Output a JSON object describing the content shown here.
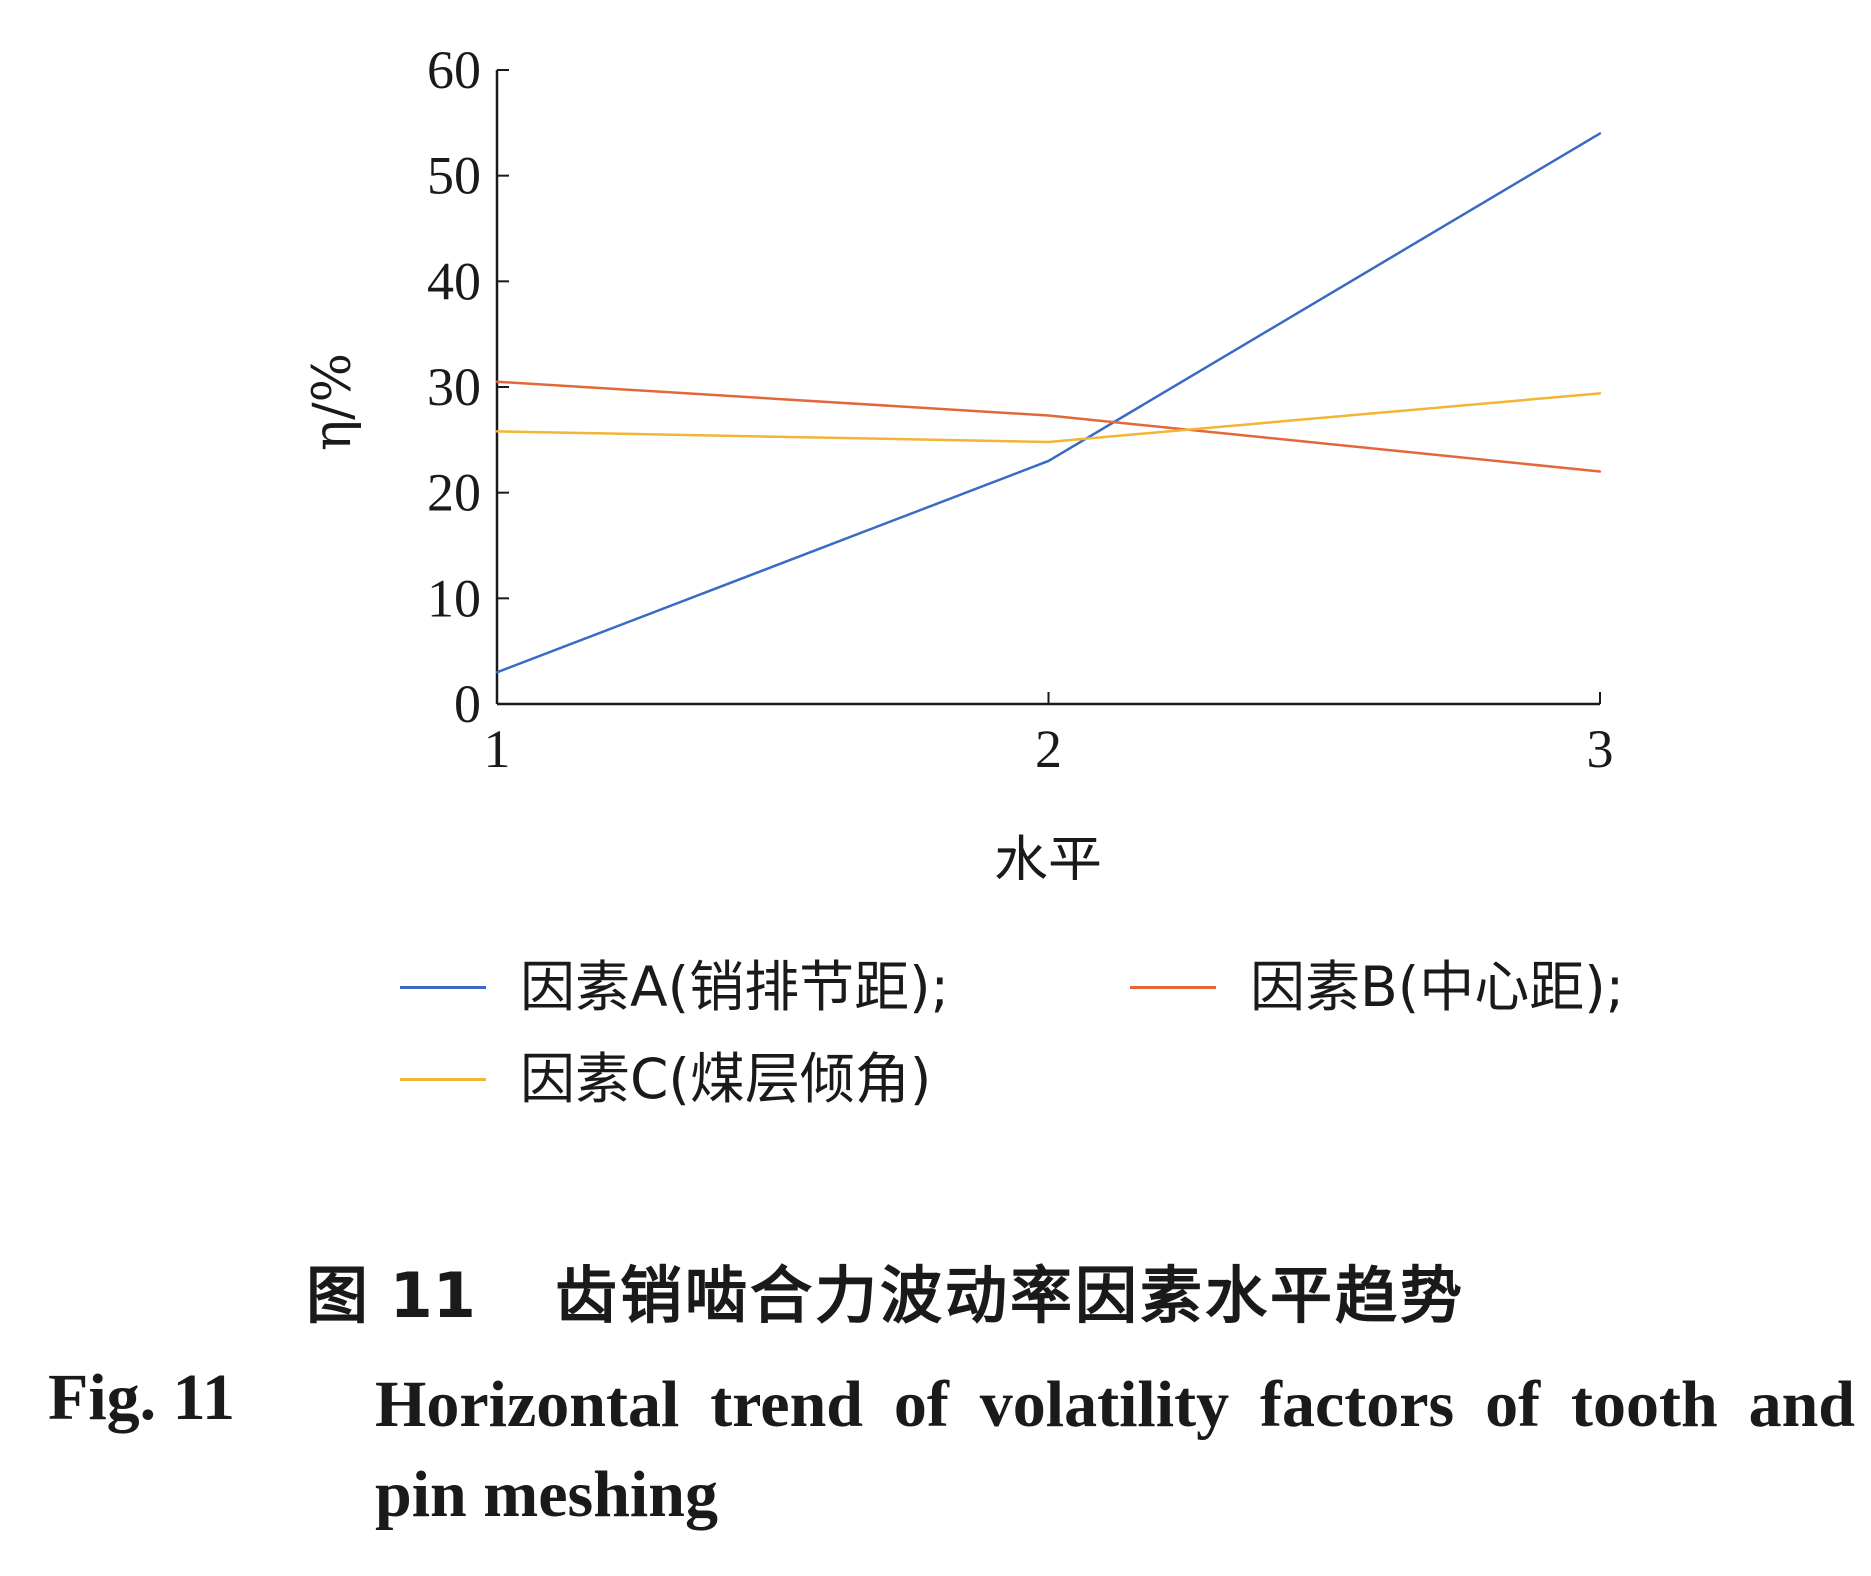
{
  "chart_data": {
    "type": "line",
    "x": [
      1,
      2,
      3
    ],
    "xlabel": "水平",
    "ylabel": "η/%",
    "xlim": [
      1,
      3
    ],
    "ylim": [
      0,
      60
    ],
    "yticks": [
      0,
      10,
      20,
      30,
      40,
      50,
      60
    ],
    "xticks": [
      1,
      2,
      3
    ],
    "grid": false,
    "legend_position": "bottom",
    "series": [
      {
        "name": "因素A(销排节距);",
        "values": [
          3,
          23,
          54
        ],
        "color": "#3a6bc4"
      },
      {
        "name": "因素B(中心距);",
        "values": [
          30.5,
          27.3,
          22
        ],
        "color": "#e2683c"
      },
      {
        "name": "因素C(煤层倾角)",
        "values": [
          25.8,
          24.8,
          29.4
        ],
        "color": "#f2b535"
      }
    ]
  },
  "caption": {
    "cn_number": "图 11",
    "cn_title": "齿销啮合力波动率因素水平趋势",
    "en_number": "Fig. 11",
    "en_title": "Horizontal trend of volatility factors of tooth and pin meshing"
  }
}
